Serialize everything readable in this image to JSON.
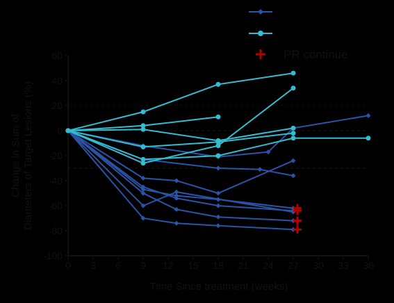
{
  "chart_data": {
    "type": "line",
    "xlabel": "Time Since treatment (weeks)",
    "ylabel": [
      "Change in Sum of",
      "Diameters of Target Lesions (%)"
    ],
    "xlim": [
      0,
      36
    ],
    "ylim": [
      -100,
      60
    ],
    "xticks": [
      "0",
      "3",
      "6",
      "9",
      "12",
      "15",
      "18",
      "21",
      "24",
      "27",
      "30",
      "33",
      "36"
    ],
    "yticks": [
      "60",
      "40",
      "20",
      "0",
      "-20",
      "-40",
      "-60",
      "-80",
      "-100"
    ],
    "reference_lines": [
      20,
      0,
      -30
    ],
    "legend": [
      {
        "marker": "diamond",
        "color": "#2a54a8",
        "label": ""
      },
      {
        "marker": "circle",
        "color": "#35bcd0",
        "label": ""
      },
      {
        "marker": "cross",
        "color": "#b00000",
        "label": "PR continue"
      }
    ],
    "colors": {
      "dark_series": "#2a54a8",
      "light_series": "#35bcd0",
      "pr_marker": "#b00000",
      "axis": "#111111",
      "background": "#000000"
    },
    "series": [
      {
        "group": "dark",
        "x": [
          0,
          9,
          13,
          18,
          27
        ],
        "y": [
          0,
          -38,
          -40,
          -50,
          -24
        ]
      },
      {
        "group": "dark",
        "x": [
          0,
          9,
          13,
          18,
          27
        ],
        "y": [
          0,
          -47,
          -52,
          -55,
          -62
        ],
        "pr": true
      },
      {
        "group": "dark",
        "x": [
          0,
          9,
          13,
          18,
          27
        ],
        "y": [
          0,
          -45,
          -54,
          -60,
          -64
        ],
        "pr": true
      },
      {
        "group": "dark",
        "x": [
          0,
          9,
          13,
          18,
          27
        ],
        "y": [
          0,
          -50,
          -63,
          -69,
          -72
        ],
        "pr": true
      },
      {
        "group": "dark",
        "x": [
          0,
          9,
          13,
          18,
          27
        ],
        "y": [
          0,
          -70,
          -74,
          -76,
          -79
        ],
        "pr": true
      },
      {
        "group": "dark",
        "x": [
          0,
          9,
          18,
          24,
          27,
          36
        ],
        "y": [
          0,
          -12,
          -21,
          -17,
          2,
          12
        ]
      },
      {
        "group": "dark",
        "x": [
          0,
          9,
          18,
          23,
          27
        ],
        "y": [
          0,
          -23,
          -30,
          -31,
          -36
        ]
      },
      {
        "group": "dark",
        "x": [
          0,
          9,
          13,
          27
        ],
        "y": [
          0,
          -60,
          -49,
          -65
        ]
      },
      {
        "group": "light",
        "x": [
          0,
          9,
          18,
          27
        ],
        "y": [
          0,
          15,
          37,
          46
        ]
      },
      {
        "group": "light",
        "x": [
          0,
          9,
          18
        ],
        "y": [
          0,
          4,
          11
        ]
      },
      {
        "group": "light",
        "x": [
          0,
          9,
          18,
          27
        ],
        "y": [
          0,
          1,
          -8,
          2
        ]
      },
      {
        "group": "light",
        "x": [
          0,
          9,
          18,
          27
        ],
        "y": [
          0,
          -13,
          -9,
          -2
        ]
      },
      {
        "group": "light",
        "x": [
          0,
          9,
          18,
          27
        ],
        "y": [
          0,
          -26,
          -12,
          34
        ]
      },
      {
        "group": "light",
        "x": [
          0,
          9,
          18,
          27,
          36
        ],
        "y": [
          0,
          -23,
          -20,
          -6,
          -6
        ]
      }
    ]
  }
}
